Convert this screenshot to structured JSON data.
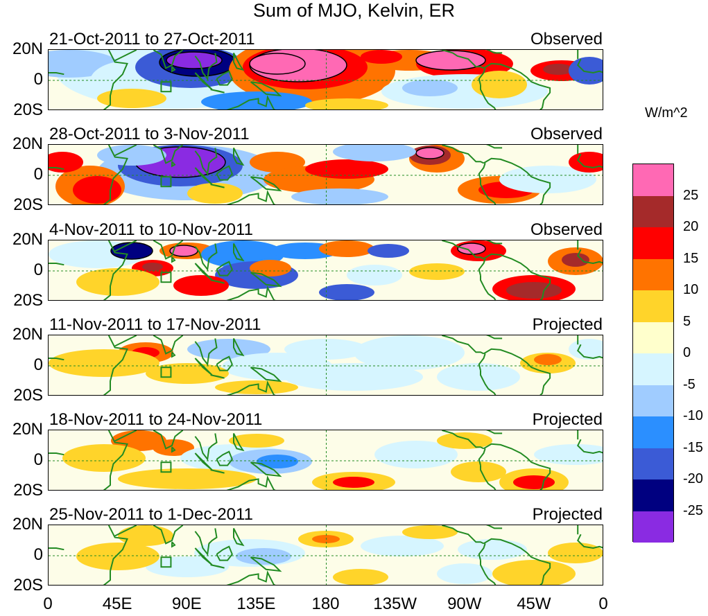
{
  "title": "Sum of MJO, Kelvin, ER",
  "panels": [
    {
      "date_range": "21-Oct-2011 to 27-Oct-2011",
      "type": "Observed"
    },
    {
      "date_range": "28-Oct-2011 to 3-Nov-2011",
      "type": "Observed"
    },
    {
      "date_range": "4-Nov-2011 to 10-Nov-2011",
      "type": "Observed"
    },
    {
      "date_range": "11-Nov-2011 to 17-Nov-2011",
      "type": "Projected"
    },
    {
      "date_range": "18-Nov-2011 to 24-Nov-2011",
      "type": "Projected"
    },
    {
      "date_range": "25-Nov-2011 to 1-Dec-2011",
      "type": "Projected"
    }
  ],
  "y_axis_labels": [
    "20N",
    "0",
    "20S"
  ],
  "x_axis_labels": [
    "0",
    "45E",
    "90E",
    "135E",
    "180",
    "135W",
    "90W",
    "45W",
    "0"
  ],
  "colorbar": {
    "units": "W/m^2",
    "labels": [
      "25",
      "20",
      "15",
      "10",
      "5",
      "0",
      "-5",
      "-10",
      "-15",
      "-20",
      "-25"
    ],
    "colors": [
      "#ff69b4",
      "#a52a2a",
      "#ff0000",
      "#ff7300",
      "#ffd42a",
      "#ffffcc",
      "#d6f5ff",
      "#a0ccff",
      "#2b8fff",
      "#3b5bd6",
      "#000080",
      "#8a2be2"
    ]
  },
  "coast_color": "#228b22"
}
